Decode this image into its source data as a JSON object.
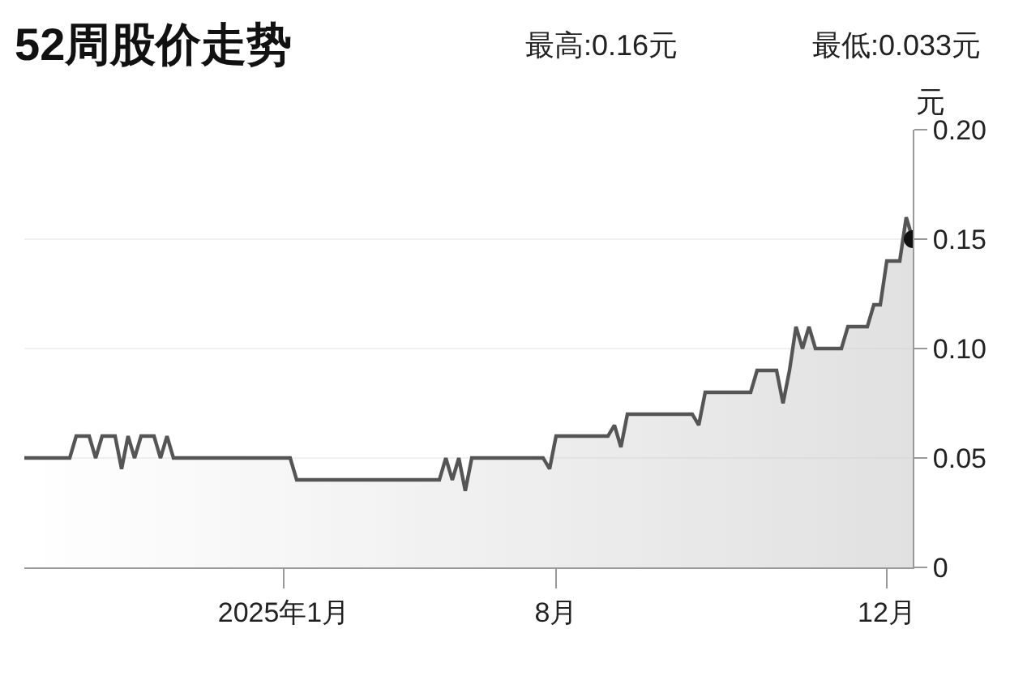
{
  "chart_data": {
    "type": "area",
    "title": "52周股价走势",
    "ylabel": "元",
    "annotations": [
      "最高:0.16元",
      "最低:0.033元"
    ],
    "categories": [
      null,
      null,
      null,
      null,
      null,
      null,
      null,
      null,
      null,
      null,
      null,
      null,
      null,
      null,
      null,
      null,
      null,
      null,
      null,
      null,
      null,
      null,
      null,
      null,
      null,
      null,
      null,
      null,
      null,
      null,
      null,
      null,
      null,
      null,
      null,
      null,
      null,
      null,
      null,
      null,
      "2025年1月",
      null,
      null,
      null,
      null,
      null,
      null,
      null,
      null,
      null,
      null,
      null,
      null,
      null,
      null,
      null,
      null,
      null,
      null,
      null,
      null,
      null,
      null,
      null,
      null,
      null,
      null,
      null,
      null,
      null,
      null,
      null,
      null,
      null,
      null,
      null,
      null,
      null,
      null,
      null,
      null,
      null,
      "8月",
      null,
      null,
      null,
      null,
      null,
      null,
      null,
      null,
      null,
      null,
      null,
      null,
      null,
      null,
      null,
      null,
      null,
      null,
      null,
      null,
      null,
      null,
      null,
      null,
      null,
      null,
      null,
      null,
      null,
      null,
      null,
      null,
      null,
      null,
      null,
      null,
      null,
      null,
      null,
      null,
      null,
      null,
      null,
      null,
      null,
      null,
      null,
      null,
      null,
      null,
      "12月",
      null,
      null,
      null,
      null
    ],
    "ylim": [
      0,
      0.2
    ],
    "yticks": [
      0,
      0.05,
      {
        "value": 0.1,
        "label": "0.10"
      },
      0.15,
      {
        "value": 0.2,
        "label": "0.20"
      }
    ],
    "grid": "y",
    "series": [
      {
        "color": "#555555",
        "values": [
          0.05,
          0.05,
          0.05,
          0.05,
          0.05,
          0.05,
          0.05,
          0.05,
          0.06,
          0.06,
          0.06,
          0.05,
          0.06,
          0.06,
          0.06,
          0.045,
          0.06,
          0.05,
          0.06,
          0.06,
          0.06,
          0.05,
          0.06,
          0.05,
          0.05,
          0.05,
          0.05,
          0.05,
          0.05,
          0.05,
          0.05,
          0.05,
          0.05,
          0.05,
          0.05,
          0.05,
          0.05,
          0.05,
          0.05,
          0.05,
          0.05,
          0.05,
          0.04,
          0.04,
          0.04,
          0.04,
          0.04,
          0.04,
          0.04,
          0.04,
          0.04,
          0.04,
          0.04,
          0.04,
          0.04,
          0.04,
          0.04,
          0.04,
          0.04,
          0.04,
          0.04,
          0.04,
          0.04,
          0.04,
          0.04,
          0.05,
          0.04,
          0.05,
          0.035,
          0.05,
          0.05,
          0.05,
          0.05,
          0.05,
          0.05,
          0.05,
          0.05,
          0.05,
          0.05,
          0.05,
          0.05,
          0.045,
          0.06,
          0.06,
          0.06,
          0.06,
          0.06,
          0.06,
          0.06,
          0.06,
          0.06,
          0.065,
          0.055,
          0.07,
          0.07,
          0.07,
          0.07,
          0.07,
          0.07,
          0.07,
          0.07,
          0.07,
          0.07,
          0.07,
          0.065,
          0.08,
          0.08,
          0.08,
          0.08,
          0.08,
          0.08,
          0.08,
          0.08,
          0.09,
          0.09,
          0.09,
          0.09,
          0.075,
          0.09,
          0.11,
          0.1,
          0.11,
          0.1,
          0.1,
          0.1,
          0.1,
          0.1,
          0.11,
          0.11,
          0.11,
          0.11,
          0.12,
          0.12,
          0.14,
          0.14,
          0.14,
          0.16,
          0.15
        ]
      },
      {
        "type": "scatter",
        "color": "#111111",
        "marker": "circle",
        "values": [
          null,
          null,
          null,
          null,
          null,
          null,
          null,
          null,
          null,
          null,
          null,
          null,
          null,
          null,
          null,
          null,
          null,
          null,
          null,
          null,
          null,
          null,
          null,
          null,
          null,
          null,
          null,
          null,
          null,
          null,
          null,
          null,
          null,
          null,
          null,
          null,
          null,
          null,
          null,
          null,
          null,
          null,
          null,
          null,
          null,
          null,
          null,
          null,
          null,
          null,
          null,
          null,
          null,
          null,
          null,
          null,
          null,
          null,
          null,
          null,
          null,
          null,
          null,
          null,
          null,
          null,
          null,
          null,
          null,
          null,
          null,
          null,
          null,
          null,
          null,
          null,
          null,
          null,
          null,
          null,
          null,
          null,
          null,
          null,
          null,
          null,
          null,
          null,
          null,
          null,
          null,
          null,
          null,
          null,
          null,
          null,
          null,
          null,
          null,
          null,
          null,
          null,
          null,
          null,
          null,
          null,
          null,
          null,
          null,
          null,
          null,
          null,
          null,
          null,
          null,
          null,
          null,
          null,
          null,
          null,
          null,
          null,
          null,
          null,
          null,
          null,
          null,
          null,
          null,
          null,
          null,
          null,
          null,
          null,
          null,
          null,
          null,
          0.15
        ]
      }
    ]
  }
}
